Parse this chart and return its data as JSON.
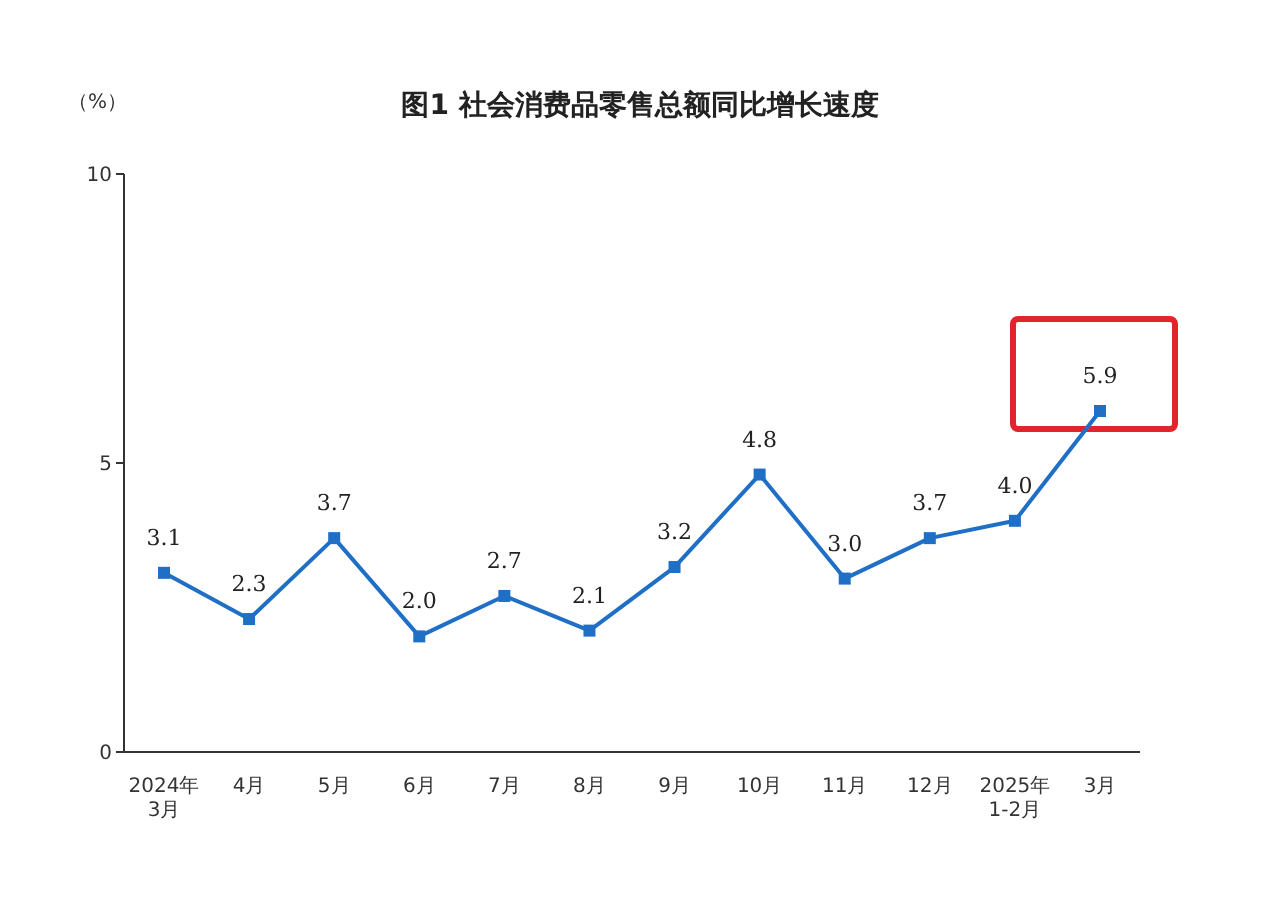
{
  "chart_data": {
    "type": "line",
    "title": "图1  社会消费品零售总额同比增长速度",
    "ylabel": "（%）",
    "categories": [
      "2024年\n3月",
      "4月",
      "5月",
      "6月",
      "7月",
      "8月",
      "9月",
      "10月",
      "11月",
      "12月",
      "2025年\n1-2月",
      "3月"
    ],
    "series": [
      {
        "color": "#1f6fc6",
        "values": [
          3.1,
          2.3,
          3.7,
          2.0,
          2.7,
          2.1,
          3.2,
          4.8,
          3.0,
          3.7,
          4.0,
          5.9
        ],
        "value_labels": [
          "3.1",
          "2.3",
          "3.7",
          "2.0",
          "2.7",
          "2.1",
          "3.2",
          "4.8",
          "3.0",
          "3.7",
          "4.0",
          "5.9"
        ]
      }
    ],
    "ylim": [
      0,
      10
    ],
    "yticks": [
      0,
      5,
      10
    ],
    "grid": false,
    "legend": false,
    "marker": "square",
    "line_style": "solid"
  }
}
